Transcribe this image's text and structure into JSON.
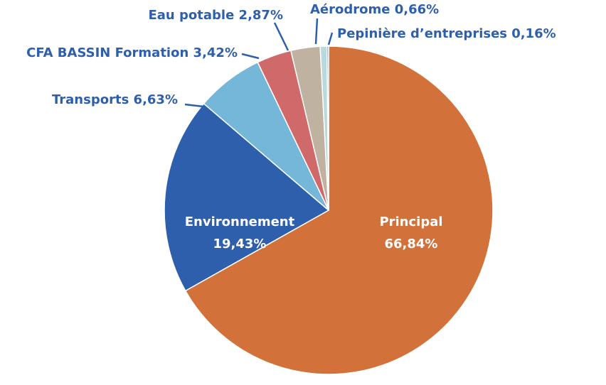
{
  "chart_data": {
    "type": "pie",
    "title": "",
    "legend": "none",
    "slices": [
      {
        "label": "Principal",
        "value_label": "66,84%",
        "value": 66.84,
        "color": "#D2723A",
        "label_mode": "inside"
      },
      {
        "label": "Environnement",
        "value_label": "19,43%",
        "value": 19.43,
        "color": "#2E5FAD",
        "label_mode": "inside"
      },
      {
        "label": "Transports 6,63%",
        "value": 6.63,
        "color": "#74B7D9",
        "label_mode": "outside"
      },
      {
        "label": "CFA BASSIN Formation 3,42%",
        "value": 3.42,
        "color": "#D06A6A",
        "label_mode": "outside"
      },
      {
        "label": "Eau potable 2,87%",
        "value": 2.87,
        "color": "#BFB2A0",
        "label_mode": "outside"
      },
      {
        "label": "Aérodrome 0,66%",
        "value": 0.66,
        "color": "#B9D9DC",
        "label_mode": "outside"
      },
      {
        "label": "Pepinière d’entreprises 0,16%",
        "value": 0.16,
        "color": "#5C82BD",
        "label_mode": "outside"
      }
    ],
    "colors": {
      "outside_label": "#2E5FAD",
      "leader_line": "#2E5FAD",
      "inside_label": "#FFFFFF",
      "slice_border": "#FFFFFF"
    }
  }
}
